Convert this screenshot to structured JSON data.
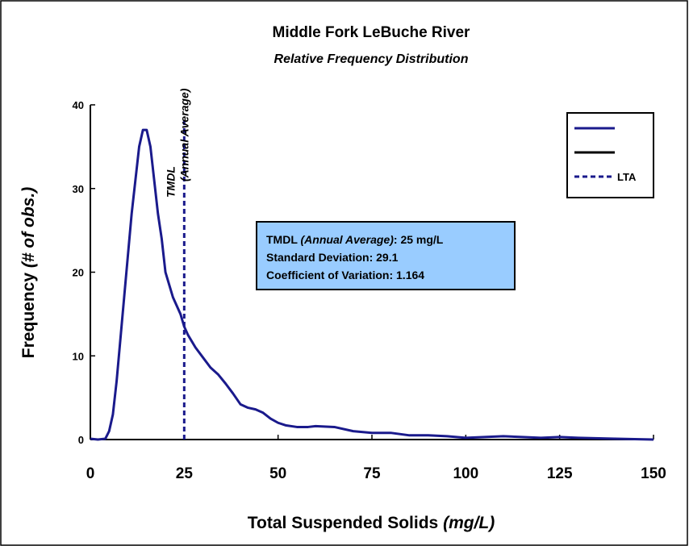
{
  "chart_data": {
    "type": "line",
    "title": "Middle Fork LeBuche River",
    "subtitle": "Relative Frequency Distribution",
    "x_label": [
      "Total Suspended Solids ",
      "(mg/L)"
    ],
    "y_label": [
      "Frequency ",
      "(# of obs.)"
    ],
    "xlim": [
      0,
      150
    ],
    "ylim": [
      0,
      40
    ],
    "xticks": [
      0,
      25,
      50,
      75,
      100,
      125,
      150
    ],
    "yticks": [
      0,
      10,
      20,
      30,
      40
    ],
    "series": [
      {
        "color": "#1a1a8c",
        "x": [
          0,
          2,
          4,
          5,
          6,
          7,
          8,
          9,
          10,
          11,
          12,
          13,
          14,
          15,
          16,
          17,
          18,
          19,
          20,
          21,
          22,
          23,
          24,
          25,
          26,
          28,
          30,
          32,
          34,
          36,
          38,
          40,
          42,
          44,
          46,
          48,
          50,
          52,
          55,
          58,
          60,
          65,
          70,
          75,
          80,
          85,
          90,
          95,
          100,
          105,
          110,
          115,
          120,
          125,
          130,
          140,
          150
        ],
        "values": [
          0.1,
          0,
          0.1,
          1,
          3,
          7,
          12,
          17,
          22,
          27,
          31,
          35,
          37,
          37,
          35,
          31,
          27,
          24,
          20,
          18.5,
          17,
          16,
          15,
          13.5,
          12.5,
          11,
          9.8,
          8.6,
          7.8,
          6.7,
          5.5,
          4.2,
          3.8,
          3.6,
          3.2,
          2.5,
          2.0,
          1.7,
          1.5,
          1.5,
          1.6,
          1.5,
          1.0,
          0.8,
          0.8,
          0.5,
          0.5,
          0.4,
          0.2,
          0.3,
          0.4,
          0.3,
          0.2,
          0.3,
          0.2,
          0.1,
          0
        ]
      }
    ],
    "lta": {
      "x": 25,
      "color": "#1a1a8c",
      "label": "LTA",
      "annotation": [
        "TMDL",
        "(Annual Average)"
      ]
    },
    "legend": [
      {
        "color": "#1a1a8c",
        "dash": false
      },
      {
        "color": "#000000",
        "dash": false
      },
      {
        "color": "#1a1a8c",
        "dash": true
      }
    ],
    "stats_box": {
      "background": "#99ccff",
      "lines": [
        [
          "TMDL ",
          "(Annual Average)",
          ":  25 mg/L"
        ],
        [
          "Standard Deviation:  29.1"
        ],
        [
          "Coefficient of Variation:  1.164"
        ]
      ]
    }
  }
}
